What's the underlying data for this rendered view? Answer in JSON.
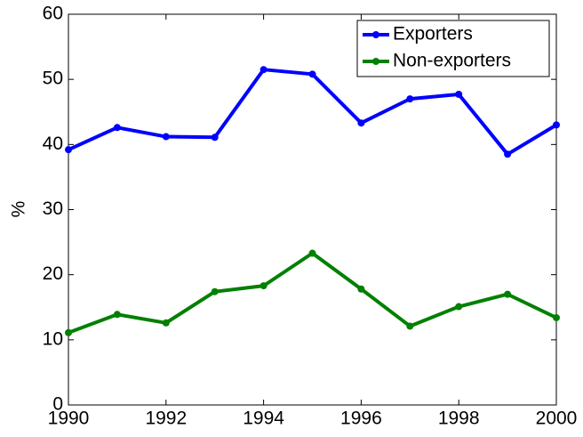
{
  "chart_data": {
    "type": "line",
    "ylabel": "%",
    "x": [
      1990,
      1991,
      1992,
      1993,
      1994,
      1995,
      1996,
      1997,
      1998,
      1999,
      2000
    ],
    "series": [
      {
        "name": "Exporters",
        "color": "#0000ff",
        "values": [
          39.2,
          42.6,
          41.2,
          41.1,
          51.5,
          50.8,
          43.3,
          47.0,
          47.7,
          38.5,
          43.0
        ]
      },
      {
        "name": "Non-exporters",
        "color": "#008000",
        "values": [
          11.1,
          13.9,
          12.6,
          17.4,
          18.3,
          23.3,
          17.8,
          12.1,
          15.1,
          17.0,
          13.4
        ]
      }
    ],
    "xlim": [
      1990,
      2000
    ],
    "xticks": [
      1990,
      1992,
      1994,
      1996,
      1998,
      2000
    ],
    "ylim": [
      0,
      60
    ],
    "yticks": [
      0,
      10,
      20,
      30,
      40,
      50,
      60
    ],
    "grid": false,
    "legend": "northeast"
  }
}
